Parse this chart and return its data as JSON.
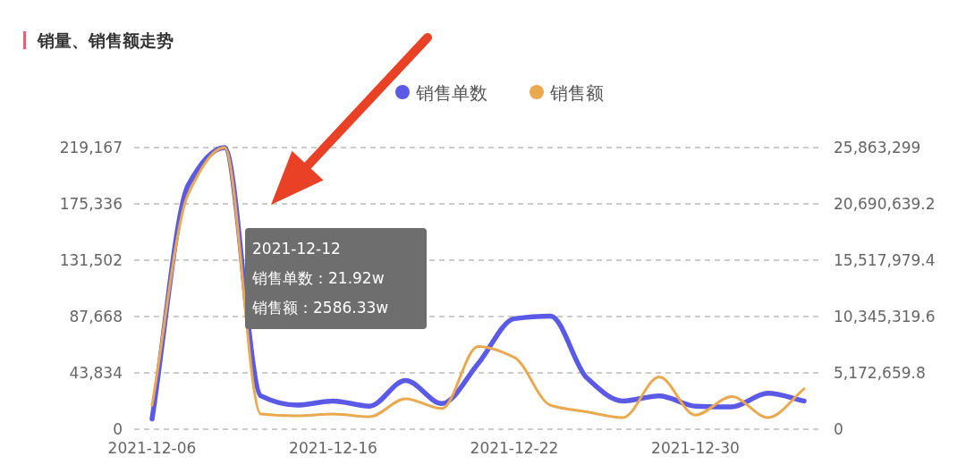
{
  "chart_data": {
    "type": "line",
    "title": "销量、销售额走势",
    "categories": [
      "2021-12-06",
      null,
      null,
      null,
      null,
      "2021-12-16",
      null,
      null,
      null,
      null,
      "2021-12-22",
      null,
      null,
      null,
      null,
      "2021-12-30",
      null,
      null,
      null
    ],
    "series": [
      {
        "name": "销售单数",
        "color": "#5a5ae6",
        "values": [
          8000,
          190000,
          219167,
          26000,
          18800,
          22000,
          18000,
          38000,
          20000,
          51000,
          86000,
          88000,
          40000,
          22000,
          26000,
          18000,
          17400,
          28000,
          22000
        ]
      },
      {
        "name": "销售额",
        "color": "#eaa84f",
        "axis": "y2",
        "values": [
          2200000,
          21600000,
          25863299,
          1400000,
          1230000,
          1400000,
          1150000,
          2800000,
          1900000,
          7600000,
          6600000,
          2200000,
          1600000,
          1070000,
          4800000,
          1300000,
          3000000,
          1070000,
          3700000
        ]
      }
    ],
    "ylim": [
      0,
      219167
    ],
    "yticks": [
      0,
      {
        "value": 43834,
        "label": "43,834"
      },
      {
        "value": 87668,
        "label": "87,668"
      },
      {
        "value": 131502,
        "label": "131,502"
      },
      {
        "value": 175336,
        "label": "175,336"
      },
      {
        "value": 219167,
        "label": "219,167"
      }
    ],
    "y2lim": [
      0,
      25863299
    ],
    "y2ticks": [
      0,
      {
        "value": 5172659.8,
        "label": "5,172,659.8"
      },
      {
        "value": 10345319.6,
        "label": "10,345,319.6"
      },
      {
        "value": 15517979.4,
        "label": "15,517,979.4"
      },
      {
        "value": 20690639.2,
        "label": "20,690,639.2"
      },
      {
        "value": 25863299,
        "label": "25,863,299"
      }
    ],
    "grid": "y",
    "legend": "top",
    "marker": "none",
    "line_style": "solid",
    "annotations": [
      "2021-12-12",
      "销售单数：21.92w",
      "销售额：2586.33w"
    ]
  }
}
